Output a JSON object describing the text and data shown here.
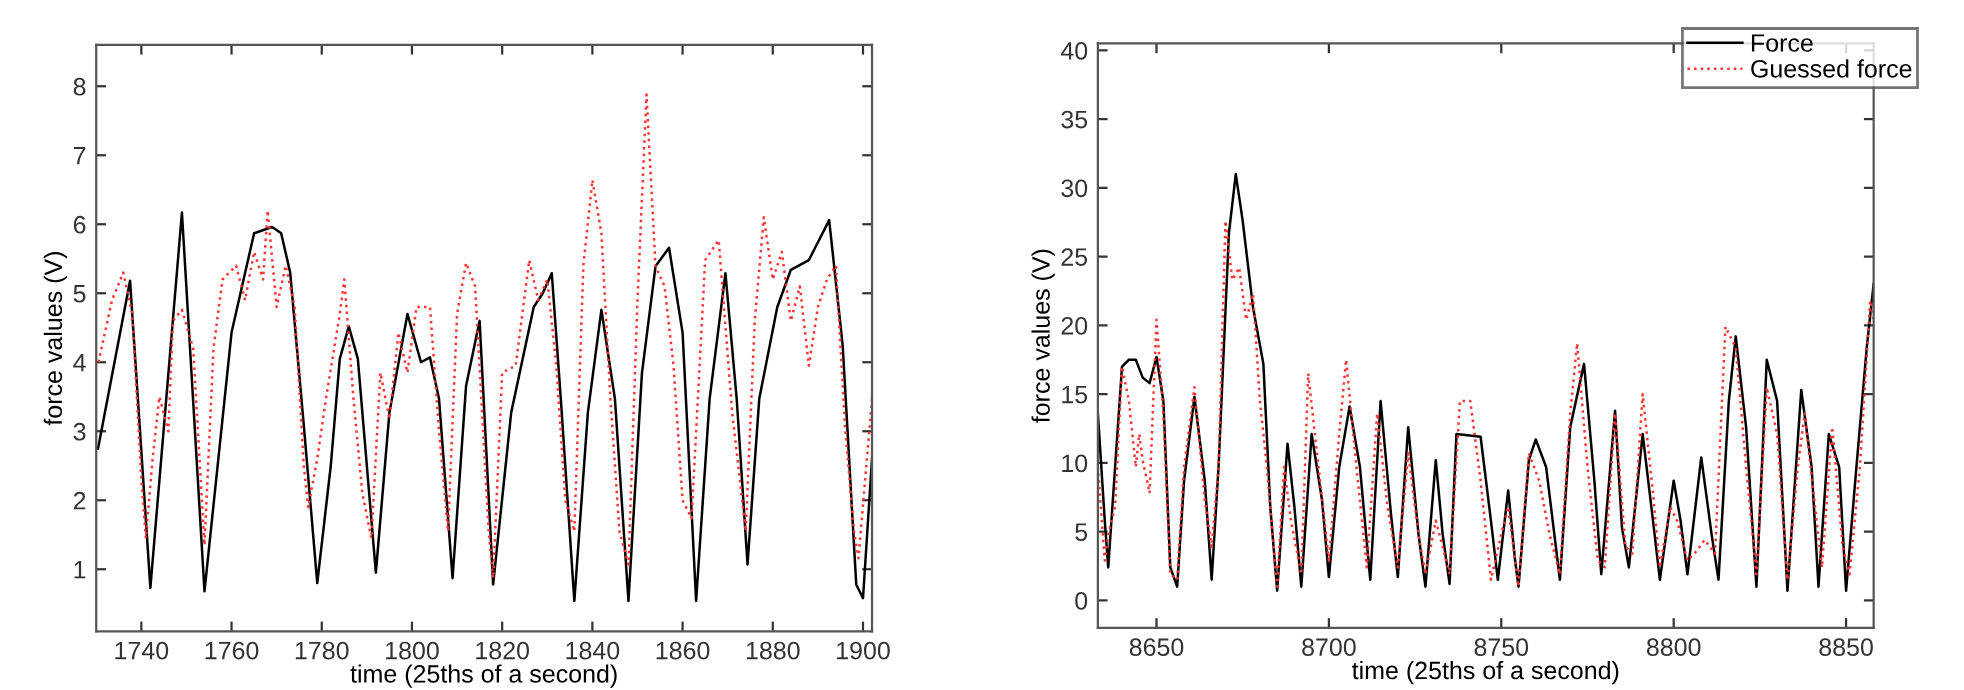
{
  "chart_data": [
    {
      "type": "line",
      "xlabel": "time (25ths of a second)",
      "ylabel": "force values (V)",
      "xlim": [
        1730,
        1902
      ],
      "ylim": [
        0.1,
        8.6
      ],
      "xticks": [
        1740,
        1760,
        1780,
        1800,
        1820,
        1840,
        1860,
        1880,
        1900
      ],
      "yticks": [
        1,
        2,
        3,
        4,
        5,
        6,
        7,
        8
      ],
      "grid": false,
      "legend": false,
      "series": [
        {
          "color": "#000000",
          "line_style": "solid",
          "x": [
            1730.4,
            1737.5,
            1742,
            1749,
            1754,
            1760,
            1765,
            1769,
            1771,
            1773,
            1776,
            1779,
            1782,
            1784,
            1786,
            1788,
            1792,
            1795,
            1799,
            1802,
            1804,
            1806,
            1809,
            1812,
            1815,
            1818,
            1822,
            1827,
            1829,
            1831,
            1833,
            1836,
            1839,
            1842,
            1845,
            1848,
            1851,
            1854,
            1857,
            1860,
            1863,
            1866,
            1869.5,
            1872,
            1874.4,
            1877,
            1881,
            1884,
            1888,
            1892.5,
            1895.5,
            1898.5,
            1900,
            1902
          ],
          "values": [
            2.75,
            5.18,
            0.73,
            6.17,
            0.68,
            4.43,
            5.87,
            5.96,
            5.87,
            5.3,
            3.1,
            0.8,
            2.5,
            4.05,
            4.52,
            4.05,
            0.95,
            3.27,
            4.7,
            4.0,
            4.07,
            3.47,
            0.87,
            3.66,
            4.6,
            0.78,
            3.27,
            4.8,
            5.0,
            5.29,
            3.47,
            0.54,
            3.27,
            4.76,
            3.47,
            0.54,
            3.85,
            5.39,
            5.66,
            4.43,
            0.54,
            3.47,
            5.29,
            3.47,
            1.07,
            3.47,
            4.8,
            5.34,
            5.48,
            6.06,
            4.24,
            0.78,
            0.58,
            2.6
          ]
        },
        {
          "color": "#ff3333",
          "line_style": "dotted",
          "x": [
            1730.5,
            1733.5,
            1736,
            1738,
            1740,
            1741,
            1742.5,
            1744,
            1746,
            1747,
            1749,
            1751.5,
            1754,
            1756,
            1758,
            1761,
            1763,
            1765,
            1767,
            1768,
            1770,
            1772,
            1774,
            1776,
            1777,
            1779,
            1781,
            1784,
            1785,
            1787,
            1789,
            1791,
            1793,
            1795,
            1797,
            1799,
            1801,
            1804,
            1806,
            1808,
            1810,
            1812,
            1814,
            1817,
            1818,
            1820,
            1823,
            1826,
            1828,
            1830,
            1832,
            1834,
            1836,
            1838,
            1840,
            1842,
            1844,
            1846,
            1848,
            1850,
            1852,
            1854,
            1856,
            1858,
            1860,
            1862,
            1865,
            1868,
            1871,
            1874,
            1876,
            1878,
            1880,
            1882,
            1884,
            1886,
            1888,
            1890,
            1892,
            1894,
            1896,
            1898,
            1899,
            1901,
            1902
          ],
          "values": [
            4.0,
            4.9,
            5.3,
            4.7,
            2.3,
            1.45,
            2.6,
            3.5,
            3.0,
            4.6,
            4.76,
            4.2,
            1.35,
            4.2,
            5.2,
            5.4,
            4.9,
            5.6,
            5.2,
            6.2,
            4.8,
            5.4,
            4.8,
            2.5,
            1.9,
            2.6,
            3.5,
            4.7,
            5.2,
            3.5,
            2.1,
            1.45,
            3.85,
            3.18,
            4.43,
            3.85,
            4.8,
            4.8,
            3.0,
            1.55,
            4.7,
            5.44,
            5.1,
            1.55,
            0.87,
            3.85,
            3.95,
            5.48,
            4.9,
            5.2,
            3.95,
            2.0,
            1.55,
            5.4,
            6.64,
            5.87,
            3.47,
            1.55,
            1.07,
            4.9,
            7.88,
            5.39,
            5.1,
            3.95,
            2.0,
            1.74,
            5.48,
            5.77,
            3.27,
            1.55,
            4.6,
            6.1,
            5.2,
            5.6,
            4.6,
            5.1,
            3.95,
            4.8,
            5.2,
            5.4,
            3.08,
            1.55,
            1.16,
            2.7,
            3.47
          ]
        }
      ]
    },
    {
      "type": "line",
      "xlabel": "time (25ths of a second)",
      "ylabel": "force values (V)",
      "xlim": [
        8633,
        8858
      ],
      "ylim": [
        -2,
        40.5
      ],
      "xticks": [
        8650,
        8700,
        8750,
        8800,
        8850
      ],
      "yticks": [
        0,
        5,
        10,
        15,
        20,
        25,
        30,
        35,
        40
      ],
      "grid": false,
      "legend": "top right",
      "series": [
        {
          "name": "Force",
          "color": "#000000",
          "line_style": "solid",
          "x": [
            8633,
            8635,
            8636,
            8638,
            8640,
            8642,
            8644,
            8646,
            8648,
            8650,
            8652,
            8654,
            8656,
            8658,
            8661,
            8664,
            8666,
            8668,
            8671,
            8673,
            8675,
            8678,
            8681,
            8683,
            8685,
            8688,
            8690,
            8692,
            8695,
            8698,
            8700,
            8703,
            8706,
            8709,
            8712,
            8715,
            8718,
            8720,
            8723,
            8726,
            8728,
            8731,
            8733,
            8735,
            8737,
            8744,
            8747,
            8749,
            8752,
            8754,
            8755,
            8758,
            8760,
            8763,
            8767,
            8770,
            8774,
            8777,
            8779,
            8783,
            8785,
            8787,
            8791,
            8794,
            8796,
            8800,
            8802,
            8804,
            8808,
            8811,
            8813,
            8816,
            8818,
            8821,
            8824,
            8827,
            8830,
            8833,
            8837,
            8840,
            8842,
            8845,
            8848,
            8850,
            8853,
            8856,
            8858
          ],
          "values": [
            13.6,
            5.8,
            2.4,
            9.7,
            17,
            17.5,
            17.5,
            16.2,
            15.8,
            17.7,
            14.5,
            2.4,
            1.0,
            8.7,
            14.8,
            8.7,
            1.5,
            9.7,
            26.7,
            31.0,
            27.6,
            21.3,
            17.2,
            6.8,
            0.7,
            11.4,
            6.8,
            1.0,
            12.1,
            7.3,
            1.7,
            9.7,
            14.1,
            9.7,
            1.5,
            14.5,
            6.3,
            1.7,
            12.6,
            4.8,
            1.0,
            10.2,
            4.8,
            1.2,
            12.1,
            11.9,
            5.8,
            1.5,
            8.0,
            2.9,
            1.0,
            10.2,
            11.7,
            9.7,
            1.5,
            12.6,
            17.2,
            8.7,
            1.9,
            13.8,
            5.3,
            2.4,
            12.1,
            5.8,
            1.5,
            8.7,
            5.8,
            1.9,
            10.4,
            4.8,
            1.5,
            14.5,
            19.2,
            12.6,
            1.0,
            17.5,
            14.5,
            0.7,
            15.3,
            9.7,
            1.0,
            12.1,
            9.7,
            0.7,
            9.7,
            18.4,
            23.0
          ]
        },
        {
          "name": "Guessed force",
          "color": "#ff3333",
          "line_style": "dotted",
          "x": [
            8633,
            8635,
            8636,
            8638,
            8640,
            8642,
            8644,
            8645,
            8646,
            8648,
            8650,
            8652,
            8654,
            8656,
            8658,
            8661,
            8664,
            8666,
            8668,
            8670,
            8672,
            8674,
            8676,
            8678,
            8680,
            8682,
            8685,
            8687,
            8689,
            8692,
            8694,
            8697,
            8700,
            8703,
            8705,
            8708,
            8711,
            8714,
            8717,
            8720,
            8723,
            8726,
            8728,
            8731,
            8733,
            8735,
            8738,
            8741,
            8744,
            8747,
            8750,
            8752,
            8755,
            8758,
            8761,
            8764,
            8767,
            8770,
            8772,
            8775,
            8778,
            8780,
            8783,
            8786,
            8788,
            8791,
            8794,
            8796,
            8799,
            8801,
            8804,
            8806,
            8809,
            8812,
            8815,
            8818,
            8821,
            8824,
            8827,
            8830,
            8833,
            8836,
            8838,
            8841,
            8843,
            8846,
            8849,
            8851,
            8854,
            8857,
            8858
          ],
          "values": [
            9.7,
            2.9,
            4.8,
            6.8,
            17,
            14.5,
            9.7,
            12.1,
            10.2,
            7.8,
            20.4,
            13.6,
            1.9,
            1.5,
            9.7,
            15.5,
            7.3,
            3.9,
            9.7,
            27.6,
            23.3,
            24.2,
            20.4,
            22.3,
            14.5,
            9.7,
            1.0,
            9.7,
            5.8,
            1.9,
            16.5,
            9.7,
            2.9,
            12.1,
            17.5,
            9.7,
            2.4,
            13.6,
            6.8,
            2.4,
            10.7,
            4.8,
            1.9,
            5.8,
            3.9,
            1.9,
            14.5,
            14.5,
            8.7,
            1.5,
            4.8,
            6.8,
            1.0,
            10.7,
            8.7,
            4.8,
            1.9,
            13.6,
            18.7,
            9.7,
            2.9,
            2.4,
            13.6,
            3.9,
            3.4,
            15.0,
            7.8,
            2.4,
            6.8,
            5.8,
            2.9,
            3.4,
            4.4,
            3.4,
            19.9,
            18.4,
            9.7,
            1.9,
            15.5,
            12.1,
            1.5,
            9.7,
            13.6,
            6.8,
            2.4,
            12.6,
            3.9,
            1.9,
            9.7,
            21.8,
            20.4
          ]
        }
      ]
    }
  ]
}
